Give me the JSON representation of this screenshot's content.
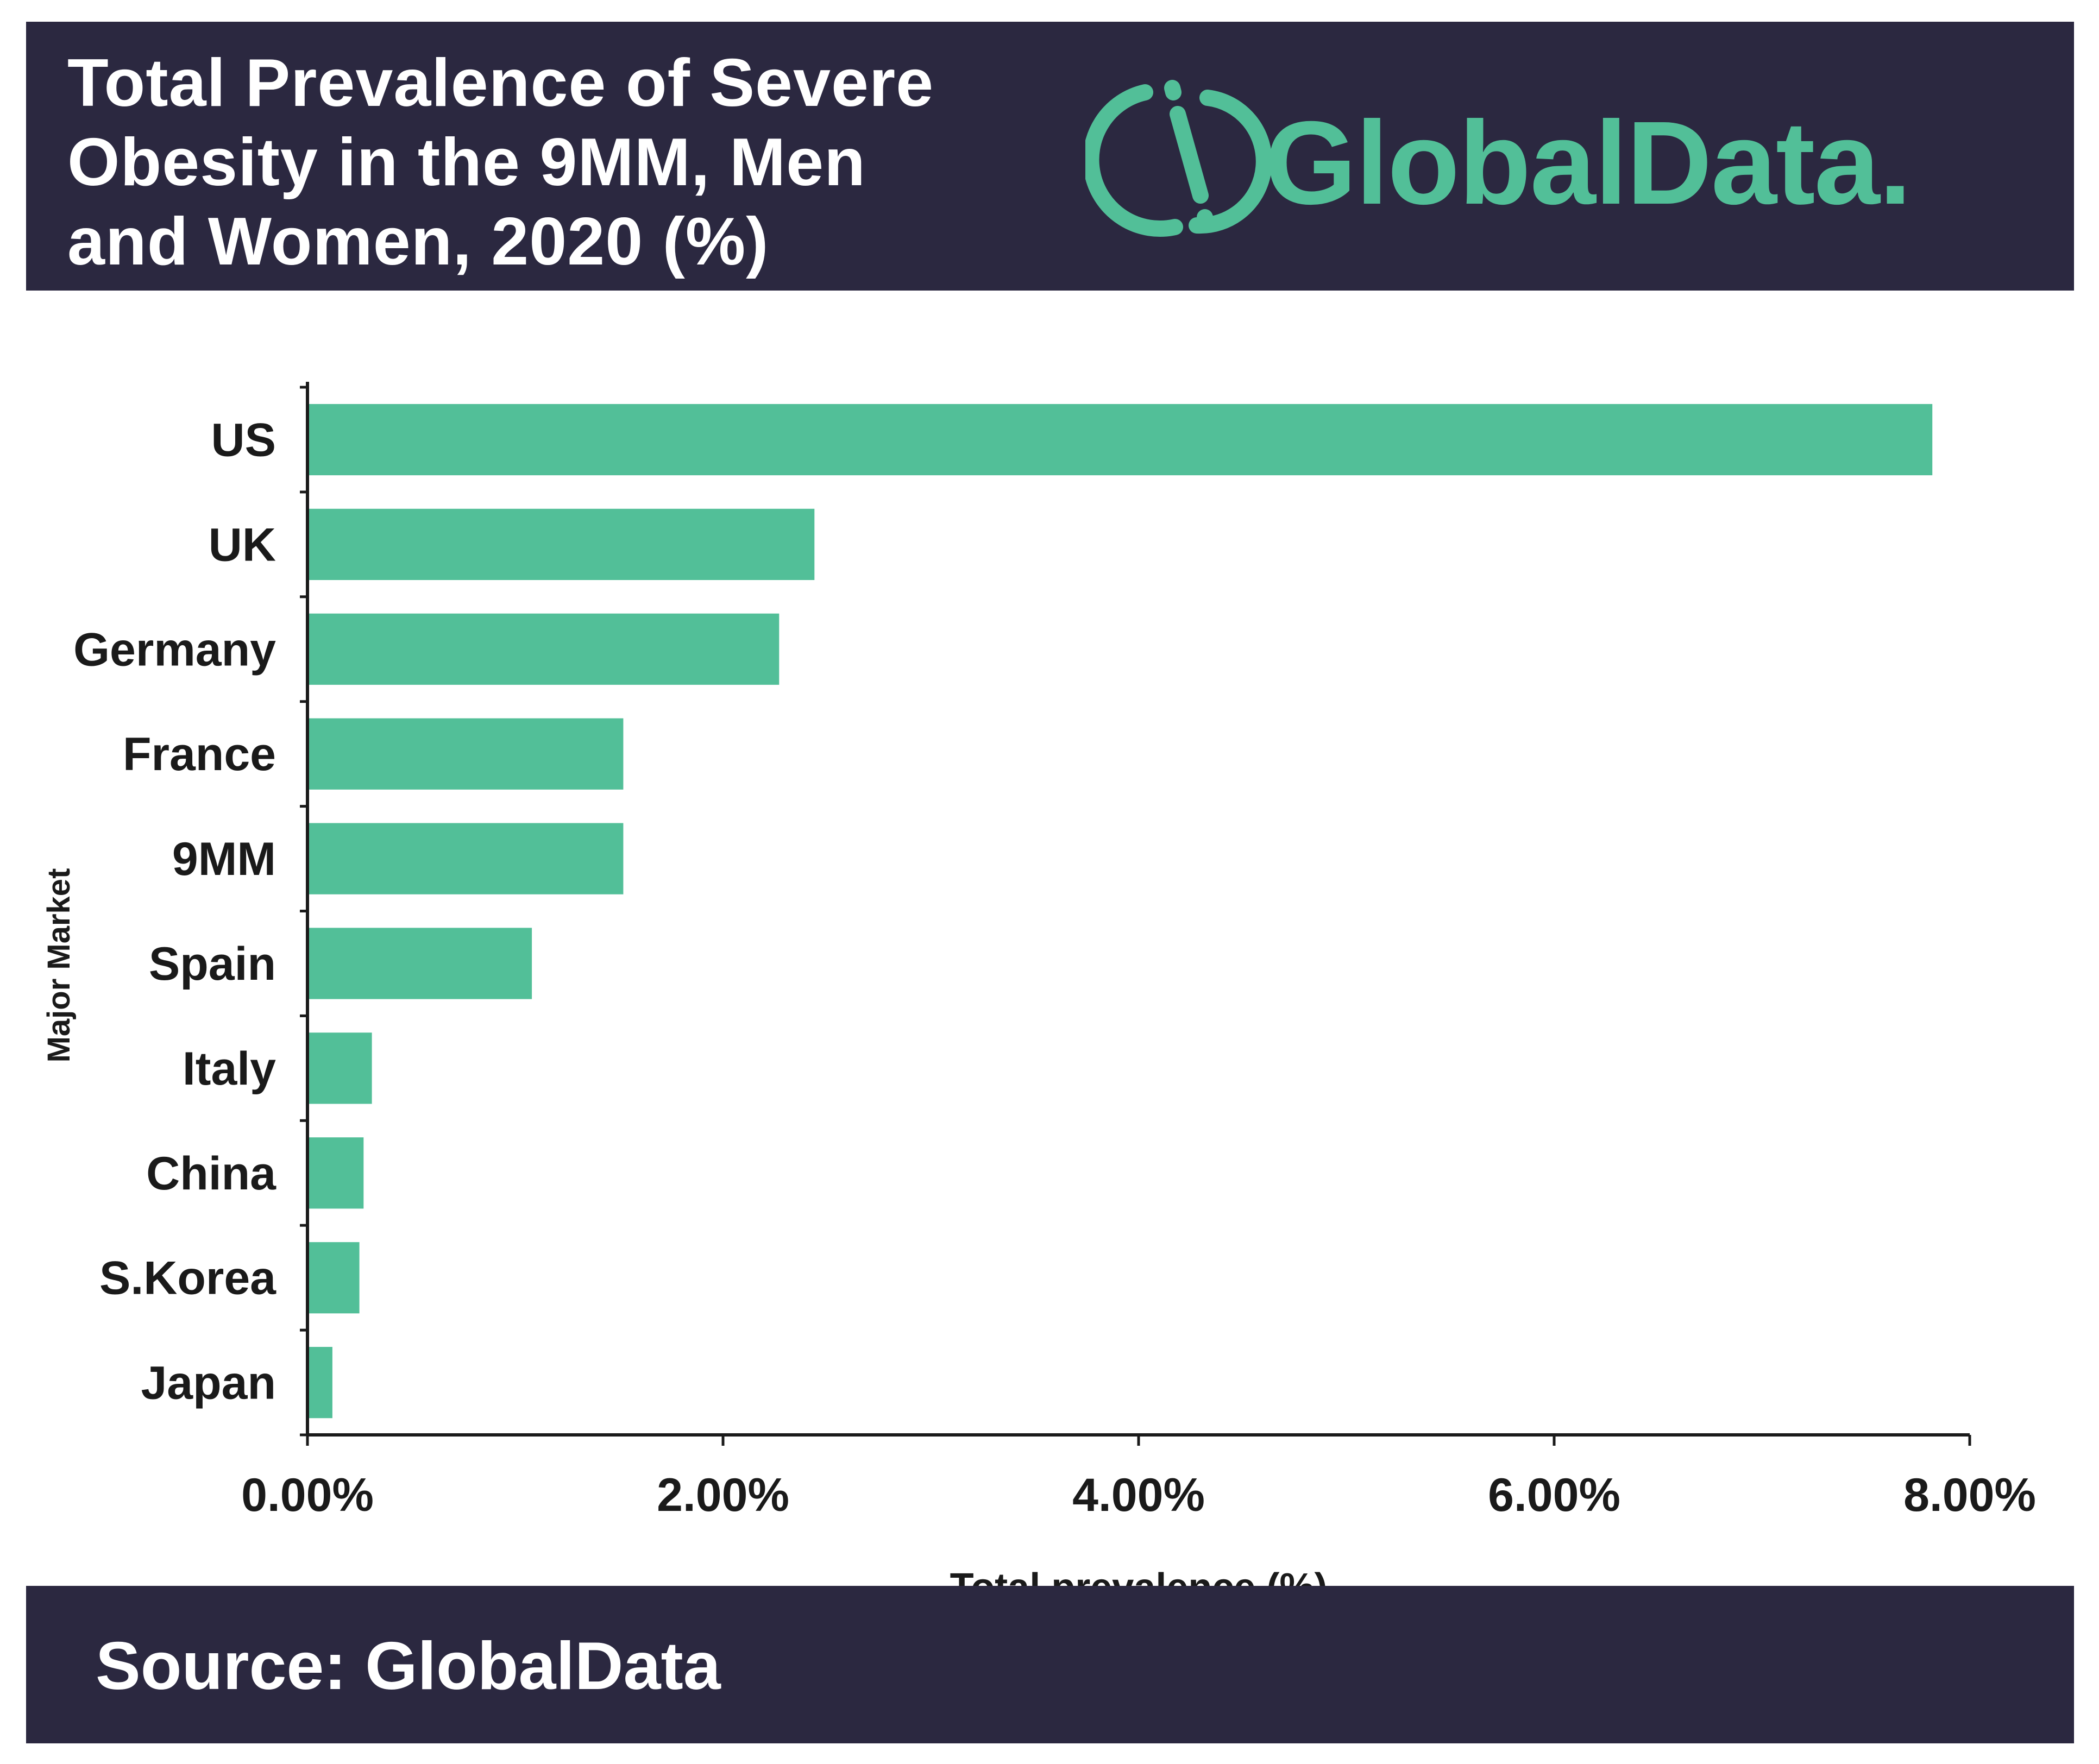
{
  "header": {
    "title": "Total Prevalence of Severe\nObesity in the 9MM, Men\nand Women, 2020 (%)",
    "logo_text": "GlobalData."
  },
  "footer": {
    "source": "Source: GlobalData"
  },
  "colors": {
    "background_dark": "#2b2840",
    "bar": "#52bf98",
    "logo": "#52bf98",
    "text_light": "#ffffff",
    "text_dark": "#1a1a1a"
  },
  "chart_data": {
    "type": "bar",
    "orientation": "horizontal",
    "title": "Total Prevalence of Severe Obesity in the 9MM, Men and Women, 2020 (%)",
    "xlabel": "Total prevalence (%)",
    "ylabel": "Major Market",
    "categories": [
      "US",
      "UK",
      "Germany",
      "France",
      "9MM",
      "Spain",
      "Italy",
      "China",
      "S.Korea",
      "Japan"
    ],
    "values": [
      7.82,
      2.44,
      2.27,
      1.52,
      1.52,
      1.08,
      0.31,
      0.27,
      0.25,
      0.12
    ],
    "xlim": [
      0,
      8
    ],
    "xticks": [
      0,
      2,
      4,
      6,
      8
    ],
    "xtick_labels": [
      "0.00%",
      "2.00%",
      "4.00%",
      "6.00%",
      "8.00%"
    ],
    "grid": false,
    "legend": "none"
  }
}
